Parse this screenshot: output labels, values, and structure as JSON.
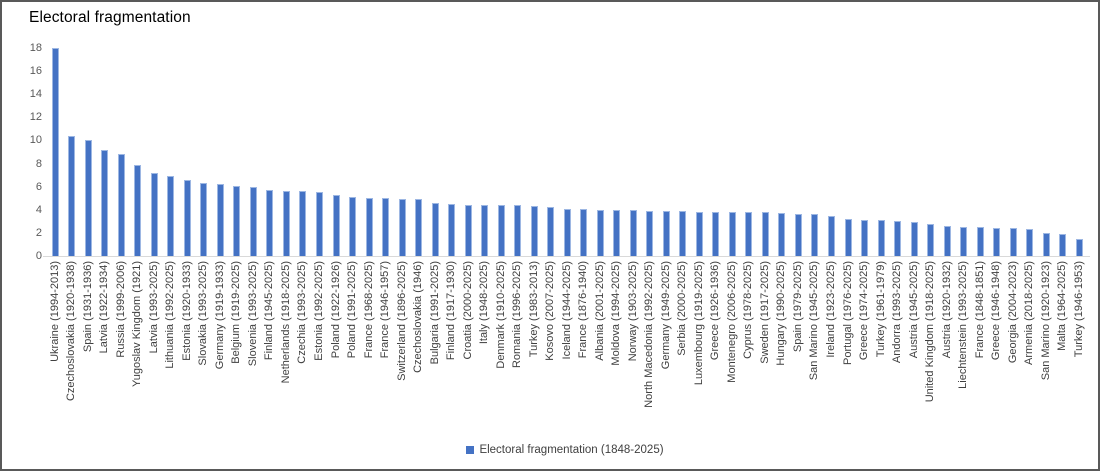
{
  "window": {
    "background": "#ffffff",
    "border_color": "#595959"
  },
  "chart_data": {
    "type": "bar",
    "title": "Electoral fragmentation",
    "legend_label": "Electoral fragmentation (1848-2025)",
    "legend_position": "bottom",
    "grid": false,
    "bar_color": "#4472C4",
    "axis_label_color": "#595959",
    "ylim": [
      0,
      18
    ],
    "yticks": [
      0,
      2,
      4,
      6,
      8,
      10,
      12,
      14,
      16,
      18
    ],
    "xlabel": "",
    "ylabel": "",
    "categories": [
      "Ukraine (1994-2013)",
      "Czechoslovakia (1920-1938)",
      "Spain (1931-1936)",
      "Latvia (1922-1934)",
      "Russia (1999-2006)",
      "Yugoslav Kingdom (1921)",
      "Latvia (1993-2025)",
      "Lithuania (1992-2025)",
      "Estonia (1920-1933)",
      "Slovakia (1993-2025)",
      "Germany (1919-1933)",
      "Belgium (1919-2025)",
      "Slovenia (1993-2025)",
      "Finland (1945-2025)",
      "Netherlands (1918-2025)",
      "Czechia (1993-2025)",
      "Estonia (1992-2025)",
      "Poland (1922-1926)",
      "Poland (1991-2025)",
      "France (1968-2025)",
      "France (1946-1957)",
      "Switzerland (1896-2025)",
      "Czechoslovakia (1946)",
      "Bulgaria (1991-2025)",
      "Finland (1917-1930)",
      "Croatia (2000-2025)",
      "Italy (1948-2025)",
      "Denmark (1910-2025)",
      "Romania (1996-2025)",
      "Turkey (1983-2013)",
      "Kosovo (2007-2025)",
      "Iceland (1944-2025)",
      "France (1876-1940)",
      "Albania (2001-2025)",
      "Moldova (1994-2025)",
      "Norway (1903-2025)",
      "North Macedonia (1992-2025)",
      "Germany (1949-2025)",
      "Serbia (2000-2025)",
      "Luxembourg (1919-2025)",
      "Greece (1926-1936)",
      "Montenegro (2006-2025)",
      "Cyprus (1978-2025)",
      "Sweden (1917-2025)",
      "Hungary (1990-2025)",
      "Spain (1979-2025)",
      "San Marino (1945-2025)",
      "Ireland (1923-2025)",
      "Portugal (1976-2025)",
      "Greece (1974-2025)",
      "Turkey (1961-1979)",
      "Andorra (1993-2025)",
      "Austria (1945-2025)",
      "United Kingdom (1918-2025)",
      "Austria (1920-1932)",
      "Liechtenstein (1993-2025)",
      "France (1848-1851)",
      "Greece (1946-1948)",
      "Georgia (2004-2023)",
      "Armenia (2018-2025)",
      "San Marino (1920-1923)",
      "Malta (1964-2025)",
      "Turkey (1946-1953)"
    ],
    "values": [
      18.0,
      10.4,
      10.0,
      9.2,
      8.8,
      7.9,
      7.2,
      6.9,
      6.6,
      6.3,
      6.2,
      6.1,
      6.0,
      5.7,
      5.6,
      5.6,
      5.5,
      5.3,
      5.1,
      5.0,
      5.0,
      4.9,
      4.9,
      4.6,
      4.5,
      4.4,
      4.4,
      4.4,
      4.4,
      4.3,
      4.2,
      4.1,
      4.1,
      4.0,
      4.0,
      4.0,
      3.9,
      3.9,
      3.9,
      3.8,
      3.8,
      3.8,
      3.8,
      3.8,
      3.7,
      3.6,
      3.6,
      3.5,
      3.2,
      3.1,
      3.1,
      3.0,
      2.9,
      2.8,
      2.6,
      2.5,
      2.5,
      2.4,
      2.4,
      2.3,
      2.0,
      1.9,
      1.5
    ]
  }
}
